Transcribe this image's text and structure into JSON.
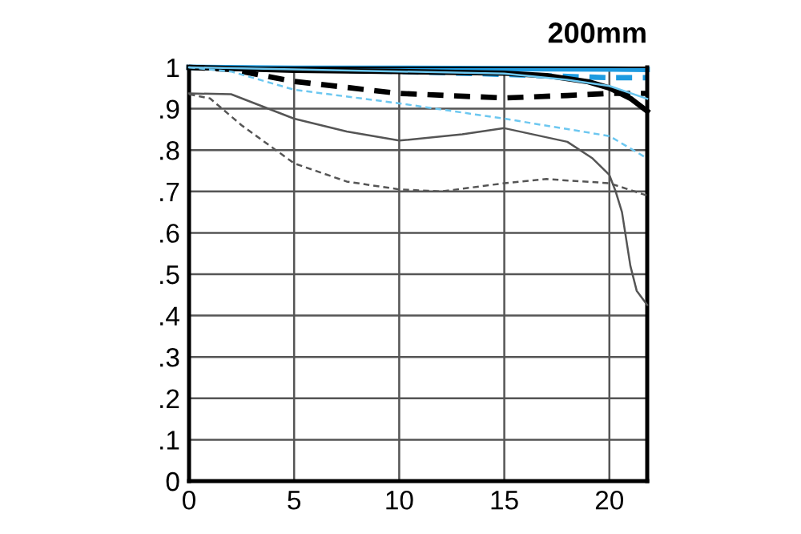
{
  "chart_data": {
    "type": "line",
    "title": "200mm",
    "xlim": [
      0,
      21.8
    ],
    "xticks": [
      0,
      5,
      10,
      15,
      20
    ],
    "ylim": [
      0,
      1
    ],
    "yticks": [
      {
        "value": 0,
        "label": "0"
      },
      {
        "value": 0.1,
        "label": ".1"
      },
      {
        "value": 0.2,
        "label": ".2"
      },
      {
        "value": 0.3,
        "label": ".3"
      },
      {
        "value": 0.4,
        "label": ".4"
      },
      {
        "value": 0.5,
        "label": ".5"
      },
      {
        "value": 0.6,
        "label": ".6"
      },
      {
        "value": 0.7,
        "label": ".7"
      },
      {
        "value": 0.8,
        "label": ".8"
      },
      {
        "value": 0.9,
        "label": ".9"
      },
      {
        "value": 1,
        "label": "1"
      }
    ],
    "grid": true,
    "legend": false,
    "marker": "none",
    "series": [
      {
        "color": "#1e9be0",
        "line_style": "solid",
        "x": [
          0,
          5,
          10,
          15,
          20,
          21.8
        ],
        "values": [
          1.0,
          0.998,
          0.998,
          0.997,
          0.996,
          0.995
        ]
      },
      {
        "color": "#1e9be0",
        "line_style": "dashed",
        "x": [
          0,
          5,
          10,
          15,
          18,
          20,
          21.8
        ],
        "values": [
          1.0,
          0.995,
          0.99,
          0.983,
          0.978,
          0.975,
          0.975
        ]
      },
      {
        "color": "#6cc7f0",
        "line_style": "solid",
        "x": [
          0,
          5,
          10,
          15,
          18,
          20,
          21.8
        ],
        "values": [
          1.0,
          0.995,
          0.99,
          0.985,
          0.97,
          0.955,
          0.924
        ]
      },
      {
        "color": "#6cc7f0",
        "line_style": "dashed",
        "x": [
          0,
          2,
          5,
          10,
          15,
          20,
          21.8
        ],
        "values": [
          1.0,
          0.99,
          0.946,
          0.913,
          0.876,
          0.834,
          0.78
        ]
      },
      {
        "color": "#000000",
        "line_style": "solid",
        "x": [
          0,
          5,
          10,
          15,
          17,
          19,
          20,
          21,
          21.8
        ],
        "values": [
          1.0,
          0.993,
          0.99,
          0.986,
          0.98,
          0.965,
          0.95,
          0.925,
          0.894
        ]
      },
      {
        "color": "#000000",
        "line_style": "dashed",
        "x": [
          0,
          2,
          5,
          10,
          15,
          18,
          20,
          21.8
        ],
        "values": [
          1.0,
          0.995,
          0.966,
          0.937,
          0.926,
          0.932,
          0.937,
          0.937
        ]
      },
      {
        "color": "#555555",
        "line_style": "solid",
        "x": [
          0,
          2,
          5,
          7.5,
          10,
          13,
          15,
          18,
          19.2,
          20,
          20.3,
          20.6,
          21,
          21.3,
          21.8
        ],
        "values": [
          0.937,
          0.935,
          0.876,
          0.845,
          0.823,
          0.838,
          0.853,
          0.82,
          0.78,
          0.74,
          0.7,
          0.65,
          0.52,
          0.46,
          0.426
        ]
      },
      {
        "color": "#555555",
        "line_style": "dashed",
        "x": [
          0,
          1,
          2.5,
          5,
          7.5,
          10,
          12,
          15,
          17,
          20,
          21.8
        ],
        "values": [
          0.935,
          0.925,
          0.86,
          0.768,
          0.724,
          0.705,
          0.7,
          0.72,
          0.73,
          0.72,
          0.69
        ]
      }
    ]
  }
}
